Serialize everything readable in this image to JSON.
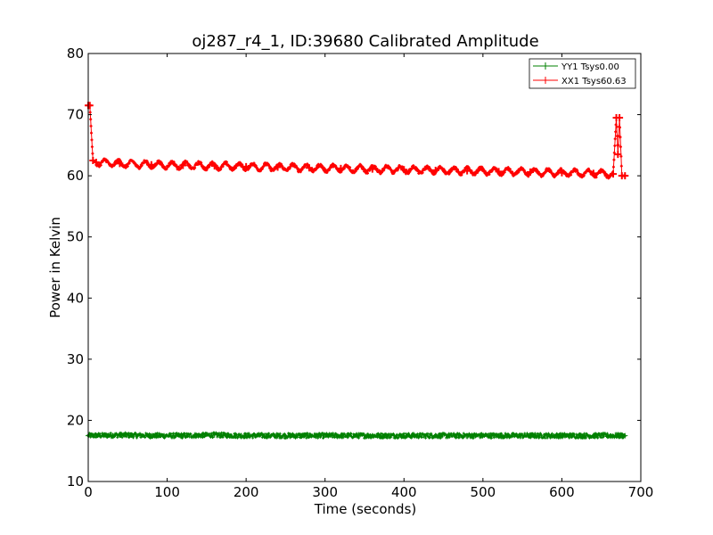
{
  "chart_data": {
    "type": "line",
    "title": "oj287_r4_1, ID:39680 Calibrated Amplitude",
    "xlabel": "Time (seconds)",
    "ylabel": "Power in Kelvin",
    "xlim": [
      0,
      700
    ],
    "ylim": [
      10,
      80
    ],
    "xticks": [
      0,
      100,
      200,
      300,
      400,
      500,
      600,
      700
    ],
    "yticks": [
      10,
      20,
      30,
      40,
      50,
      60,
      70,
      80
    ],
    "grid": false,
    "legend_position": "top-right",
    "series": [
      {
        "name": "YY1 Tsys0.00",
        "color": "#008000",
        "marker": "plus",
        "description_values": {
          "t_start": 0,
          "t_end": 680,
          "mean": 17.5,
          "noise": 0.4
        },
        "x": [
          0,
          40,
          80,
          120,
          160,
          200,
          240,
          280,
          320,
          360,
          400,
          440,
          480,
          520,
          560,
          600,
          640,
          680
        ],
        "values": [
          17.5,
          17.6,
          17.5,
          17.5,
          17.6,
          17.5,
          17.5,
          17.5,
          17.5,
          17.5,
          17.5,
          17.5,
          17.5,
          17.5,
          17.5,
          17.5,
          17.5,
          17.5
        ]
      },
      {
        "name": "XX1 Tsys60.63",
        "color": "#ff0000",
        "marker": "plus",
        "x": [
          0,
          2,
          6,
          10,
          40,
          80,
          120,
          160,
          200,
          240,
          280,
          320,
          360,
          400,
          440,
          480,
          520,
          560,
          600,
          640,
          665,
          669,
          671,
          673,
          676,
          680
        ],
        "values": [
          71.5,
          71.5,
          62.5,
          62.2,
          62.0,
          61.8,
          61.7,
          61.6,
          61.5,
          61.4,
          61.3,
          61.2,
          61.1,
          61.0,
          60.9,
          60.8,
          60.7,
          60.6,
          60.5,
          60.4,
          60.3,
          69.5,
          63.5,
          69.5,
          60.0,
          60.0
        ]
      }
    ]
  }
}
